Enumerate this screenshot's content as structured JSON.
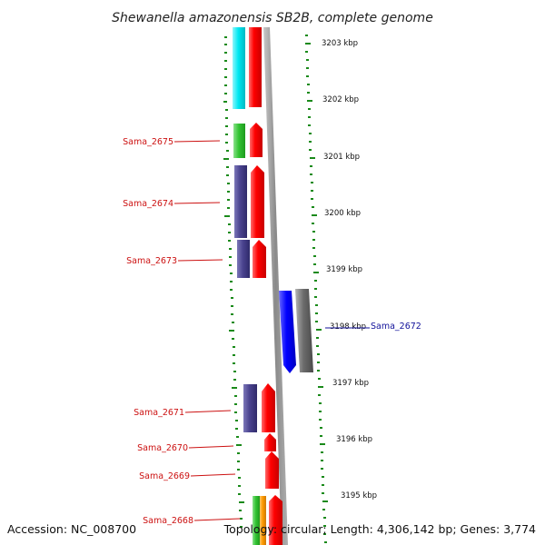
{
  "title": "Shewanella amazonensis SB2B, complete genome",
  "footer": {
    "accession": "Accession: NC_008700",
    "topology": "Topology: circular; Length: 4,306,142 bp; Genes: 3,774"
  },
  "kbp_labels": [
    "3203 kbp",
    "3202 kbp",
    "3201 kbp",
    "3200 kbp",
    "3199 kbp",
    "3198 kbp",
    "3197 kbp",
    "3196 kbp",
    "3195 kbp"
  ],
  "gene_labels": [
    "Sama_2675",
    "Sama_2674",
    "Sama_2673",
    "Sama_2672",
    "Sama_2671",
    "Sama_2670",
    "Sama_2669",
    "Sama_2668"
  ],
  "colors": {
    "cyan": "#00e5f0",
    "red": "#ff0000",
    "green": "#33c433",
    "navy": "#4a438f",
    "blue": "#0000ff",
    "gray": "#6c6c6c",
    "orange": "#ff9900",
    "ticks": "#1a8a1a",
    "label_red": "#cc1111",
    "label_blue": "#11119a"
  }
}
